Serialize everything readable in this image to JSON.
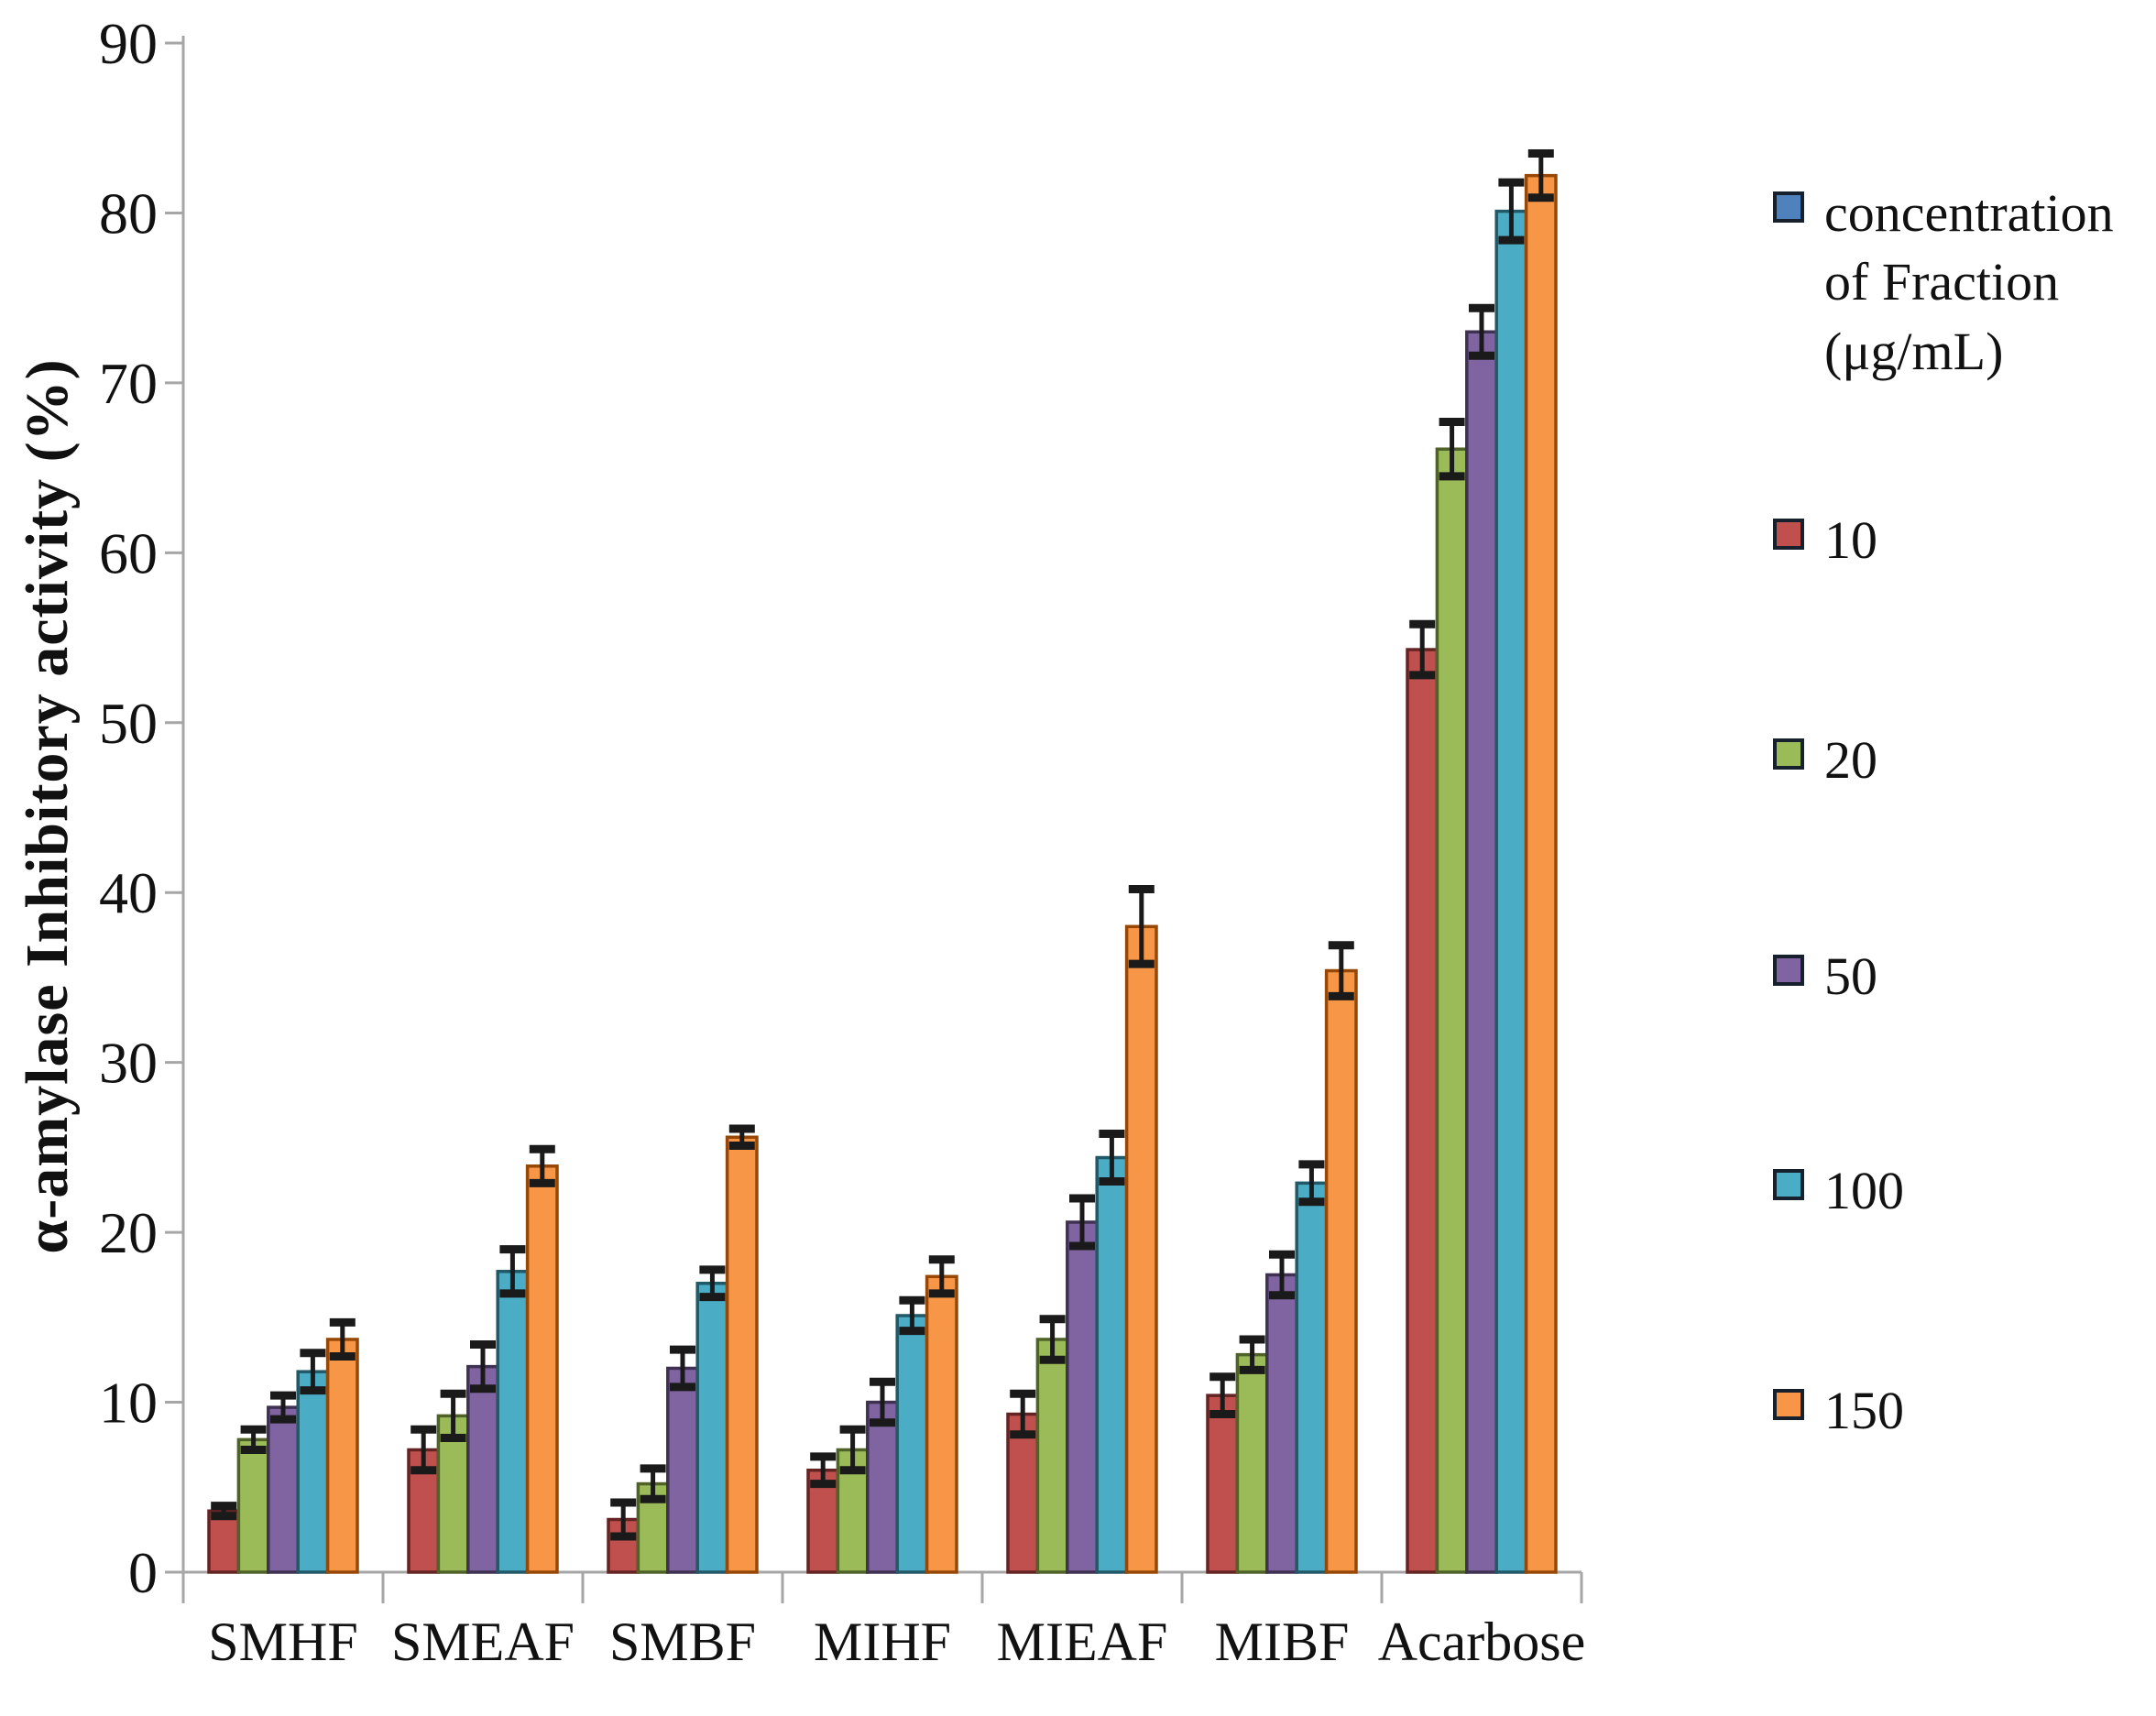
{
  "figure": {
    "background": "#ffffff",
    "axis_color": "#a6a6a6",
    "error_bar_color": "#1a1a1a"
  },
  "chart_data": {
    "type": "bar",
    "title": "",
    "xlabel": "",
    "ylabel": "α-amylase Inhibitory activity (%)",
    "ylim": [
      0,
      90
    ],
    "yticks": [
      0,
      10,
      20,
      30,
      40,
      50,
      60,
      70,
      80,
      90
    ],
    "grid": "off",
    "legend_position": "right",
    "categories": [
      "SMHF",
      "SMEAF",
      "SMBF",
      "MIHF",
      "MIEAF",
      "MIBF",
      "Acarbose"
    ],
    "series": [
      {
        "name": "10",
        "color": "#c0504d",
        "border": "#632423",
        "values": [
          3.6,
          7.2,
          3.1,
          6.0,
          9.3,
          10.4,
          54.3
        ],
        "errors": [
          0.3,
          1.2,
          1.0,
          0.8,
          1.2,
          1.1,
          1.5
        ]
      },
      {
        "name": "20",
        "color": "#9bbb59",
        "border": "#4f6228",
        "values": [
          7.8,
          9.2,
          5.2,
          7.2,
          13.7,
          12.8,
          66.1
        ],
        "errors": [
          0.6,
          1.3,
          0.9,
          1.2,
          1.2,
          0.9,
          1.6
        ]
      },
      {
        "name": "50",
        "color": "#8064a2",
        "border": "#3f3151",
        "values": [
          9.7,
          12.1,
          12.0,
          10.0,
          20.6,
          17.5,
          73.0
        ],
        "errors": [
          0.7,
          1.3,
          1.1,
          1.2,
          1.4,
          1.2,
          1.4
        ]
      },
      {
        "name": "100",
        "color": "#4bacc6",
        "border": "#215968",
        "values": [
          11.8,
          17.7,
          17.0,
          15.1,
          24.4,
          22.9,
          80.1
        ],
        "errors": [
          1.1,
          1.3,
          0.8,
          0.9,
          1.4,
          1.1,
          1.7
        ]
      },
      {
        "name": "150",
        "color": "#f79646",
        "border": "#974806",
        "values": [
          13.7,
          23.9,
          25.6,
          17.4,
          38.0,
          35.4,
          82.2
        ],
        "errors": [
          1.0,
          1.0,
          0.5,
          1.0,
          2.2,
          1.5,
          1.3
        ]
      }
    ]
  },
  "legend": {
    "items": [
      {
        "label": "concentration of Fraction (μg/mL)",
        "color": "#4f81bd"
      },
      {
        "label": "10",
        "color": "#c0504d"
      },
      {
        "label": "20",
        "color": "#9bbb59"
      },
      {
        "label": "50",
        "color": "#8064a2"
      },
      {
        "label": "100",
        "color": "#4bacc6"
      },
      {
        "label": "150",
        "color": "#f79646"
      }
    ]
  }
}
